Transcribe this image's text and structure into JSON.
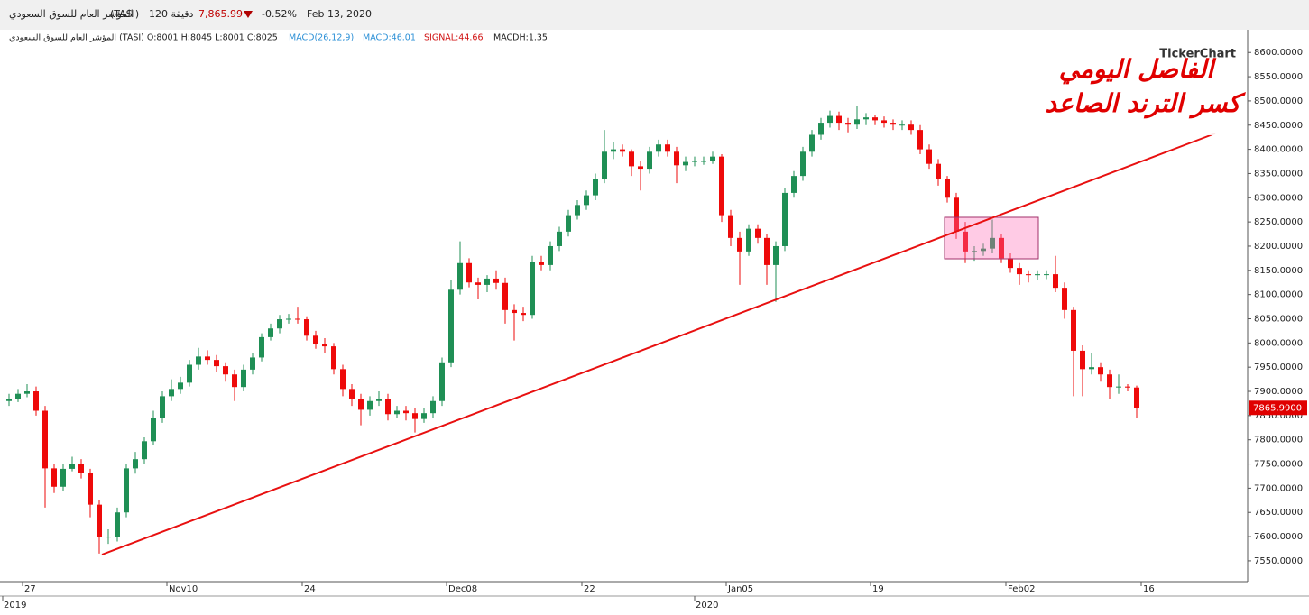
{
  "header": {
    "index_name": "المؤشر العام للسوق السعودي",
    "ticker": "(TASI)",
    "interval": "120 دقيقة",
    "last_price": "7,865.99",
    "change_pct": "-0.52%",
    "date": "Feb 13, 2020"
  },
  "info_line": {
    "ohlc": "المؤشر العام للسوق السعودي (TASI) O:8001 H:8045 L:8001 C:8025",
    "macd_params": "MACD(26,12,9)",
    "macd": "MACD:46.01",
    "signal": "SIGNAL:44.66",
    "macdh": "MACDH:1.35"
  },
  "watermark": "TickerChart",
  "annotations": {
    "line1": "الفاصل اليومي",
    "line2": "كسر الترند الصاعد"
  },
  "chart_data": {
    "type": "candlestick",
    "categories": [
      null,
      "27",
      null,
      null,
      null,
      null,
      null,
      null,
      null,
      null,
      null,
      null,
      null,
      null,
      null,
      null,
      null,
      "Nov10",
      null,
      null,
      null,
      null,
      null,
      null,
      null,
      null,
      null,
      null,
      null,
      null,
      null,
      null,
      "24",
      null,
      null,
      null,
      null,
      null,
      null,
      null,
      null,
      null,
      null,
      null,
      null,
      null,
      null,
      null,
      "Dec08",
      null,
      null,
      null,
      null,
      null,
      null,
      null,
      null,
      null,
      null,
      null,
      null,
      null,
      null,
      "22",
      null,
      null,
      null,
      null,
      null,
      null,
      null,
      null,
      null,
      null,
      null,
      null,
      null,
      null,
      null,
      "Jan05",
      null,
      null,
      null,
      null,
      null,
      null,
      null,
      null,
      null,
      null,
      null,
      null,
      null,
      null,
      null,
      "19",
      null,
      null,
      null,
      null,
      null,
      null,
      null,
      null,
      null,
      null,
      null,
      null,
      null,
      null,
      "Feb02",
      null,
      null,
      null,
      null,
      null,
      null,
      null,
      null,
      null,
      null,
      null,
      null,
      null,
      null,
      "16"
    ],
    "years": [
      "2019",
      null,
      null,
      null,
      null,
      null,
      null,
      null,
      null,
      null,
      null,
      null,
      null,
      null,
      null,
      null,
      null,
      null,
      null,
      null,
      null,
      null,
      null,
      null,
      null,
      null,
      null,
      null,
      null,
      null,
      null,
      null,
      null,
      null,
      null,
      null,
      null,
      null,
      null,
      null,
      null,
      null,
      null,
      null,
      null,
      null,
      null,
      null,
      null,
      null,
      null,
      null,
      null,
      null,
      null,
      null,
      null,
      null,
      null,
      null,
      null,
      null,
      null,
      null,
      null,
      null,
      null,
      null,
      null,
      null,
      null,
      null,
      null,
      null,
      null,
      null,
      "2020",
      null,
      null,
      null,
      null,
      null,
      null,
      null,
      null,
      null,
      null,
      null,
      null,
      null,
      null,
      null,
      null,
      null,
      null,
      null,
      null,
      null,
      null,
      null,
      null,
      null,
      null,
      null,
      null,
      null,
      null,
      null,
      null,
      null,
      null,
      null,
      null,
      null,
      null,
      null,
      null,
      null,
      null,
      null,
      null,
      null,
      null,
      null,
      null,
      null
    ],
    "open": [
      7880,
      7885,
      7895,
      7900,
      7860,
      7741,
      7703,
      7740,
      7750,
      7731,
      7666,
      7600,
      7600,
      7650,
      7741,
      7760,
      7797,
      7845,
      7890,
      7905,
      7918,
      7955,
      7972,
      7965,
      7952,
      7935,
      7909,
      7945,
      7970,
      8012,
      8030,
      8049,
      8050,
      8049,
      8015,
      7998,
      7993,
      7946,
      7905,
      7885,
      7862,
      7880,
      7885,
      7853,
      7860,
      7855,
      7843,
      7855,
      7880,
      7960,
      8110,
      8165,
      8125,
      8120,
      8133,
      8124,
      8068,
      8062,
      8058,
      8168,
      8161,
      8200,
      8230,
      8264,
      8285,
      8305,
      8338,
      8395,
      8400,
      8395,
      8365,
      8360,
      8395,
      8410,
      8395,
      8367,
      8374,
      8376,
      8376,
      8385,
      8264,
      8217,
      8189,
      8236,
      8217,
      8161,
      8200,
      8310,
      8345,
      8395,
      8430,
      8455,
      8469,
      8455,
      8451,
      8462,
      8466,
      8460,
      8455,
      8451,
      8451,
      8440,
      8400,
      8370,
      8338,
      8300,
      8230,
      8189,
      8190,
      8195,
      8217,
      8175,
      8155,
      8142,
      8140,
      8142,
      8142,
      8114,
      8068,
      7984,
      7946,
      7950,
      7935,
      7909,
      7910,
      7908
    ],
    "high": [
      7895,
      7905,
      7915,
      7910,
      7870,
      7750,
      7750,
      7765,
      7760,
      7740,
      7675,
      7615,
      7660,
      7750,
      7775,
      7805,
      7860,
      7900,
      7925,
      7930,
      7965,
      7990,
      7985,
      7975,
      7960,
      7945,
      7955,
      7980,
      8020,
      8040,
      8058,
      8060,
      8075,
      8055,
      8025,
      8010,
      8000,
      7955,
      7915,
      7895,
      7890,
      7900,
      7895,
      7870,
      7870,
      7865,
      7865,
      7890,
      7970,
      8130,
      8210,
      8175,
      8135,
      8140,
      8150,
      8135,
      8080,
      8075,
      8180,
      8180,
      8210,
      8240,
      8275,
      8295,
      8315,
      8350,
      8440,
      8415,
      8410,
      8400,
      8375,
      8405,
      8420,
      8420,
      8405,
      8385,
      8385,
      8385,
      8395,
      8390,
      8275,
      8230,
      8245,
      8245,
      8225,
      8210,
      8320,
      8355,
      8405,
      8440,
      8465,
      8480,
      8478,
      8465,
      8490,
      8475,
      8472,
      8468,
      8462,
      8460,
      8460,
      8450,
      8410,
      8380,
      8345,
      8310,
      8250,
      8200,
      8205,
      8255,
      8225,
      8185,
      8165,
      8150,
      8150,
      8150,
      8180,
      8125,
      8075,
      7995,
      7980,
      7960,
      7945,
      7935,
      7915,
      7912
    ],
    "low": [
      7870,
      7878,
      7888,
      7850,
      7660,
      7690,
      7695,
      7735,
      7720,
      7640,
      7565,
      7585,
      7590,
      7640,
      7730,
      7750,
      7790,
      7835,
      7880,
      7895,
      7910,
      7945,
      7955,
      7940,
      7920,
      7880,
      7900,
      7935,
      7962,
      8005,
      8020,
      8040,
      8040,
      8005,
      7988,
      7980,
      7935,
      7890,
      7870,
      7830,
      7850,
      7870,
      7840,
      7845,
      7840,
      7815,
      7835,
      7845,
      7870,
      7950,
      8100,
      8115,
      8090,
      8105,
      8110,
      8040,
      8005,
      8045,
      8050,
      8150,
      8150,
      8190,
      8220,
      8255,
      8275,
      8295,
      8330,
      8380,
      8385,
      8345,
      8315,
      8350,
      8385,
      8385,
      8330,
      8355,
      8365,
      8368,
      8370,
      8250,
      8200,
      8120,
      8180,
      8205,
      8120,
      8085,
      8190,
      8300,
      8335,
      8385,
      8420,
      8445,
      8440,
      8435,
      8442,
      8450,
      8450,
      8445,
      8440,
      8440,
      8430,
      8390,
      8360,
      8325,
      8290,
      8215,
      8165,
      8170,
      8180,
      8185,
      8165,
      8145,
      8120,
      8125,
      8130,
      8132,
      8105,
      8050,
      7890,
      7890,
      7935,
      7920,
      7885,
      7895,
      7900,
      7845
    ],
    "close": [
      7885,
      7895,
      7900,
      7860,
      7741,
      7703,
      7740,
      7750,
      7731,
      7666,
      7600,
      7600,
      7650,
      7741,
      7760,
      7797,
      7845,
      7890,
      7905,
      7918,
      7955,
      7972,
      7965,
      7952,
      7935,
      7909,
      7945,
      7970,
      8012,
      8030,
      8049,
      8050,
      8049,
      8015,
      7998,
      7993,
      7946,
      7905,
      7885,
      7862,
      7880,
      7885,
      7853,
      7860,
      7855,
      7843,
      7855,
      7880,
      7960,
      8110,
      8165,
      8125,
      8120,
      8133,
      8124,
      8068,
      8062,
      8058,
      8168,
      8161,
      8200,
      8230,
      8264,
      8285,
      8305,
      8338,
      8395,
      8400,
      8395,
      8365,
      8360,
      8395,
      8410,
      8395,
      8367,
      8374,
      8376,
      8376,
      8385,
      8264,
      8217,
      8189,
      8236,
      8217,
      8161,
      8200,
      8310,
      8345,
      8395,
      8430,
      8455,
      8469,
      8455,
      8451,
      8462,
      8466,
      8460,
      8455,
      8451,
      8451,
      8440,
      8400,
      8370,
      8338,
      8300,
      8230,
      8189,
      8190,
      8195,
      8217,
      8175,
      8155,
      8142,
      8140,
      8142,
      8142,
      8114,
      8068,
      7984,
      7946,
      7950,
      7935,
      7909,
      7910,
      7908,
      7866
    ],
    "up_color": "#1f8f55",
    "down_color": "#ee0a0a",
    "ylim": [
      7507,
      8647
    ],
    "yticks": [
      {
        "value": 7550,
        "label": "7550.0000"
      },
      {
        "value": 7600,
        "label": "7600.0000"
      },
      {
        "value": 7650,
        "label": "7650.0000"
      },
      {
        "value": 7700,
        "label": "7700.0000"
      },
      {
        "value": 7750,
        "label": "7750.0000"
      },
      {
        "value": 7800,
        "label": "7800.0000"
      },
      {
        "value": 7850,
        "label": "7850.0000"
      },
      {
        "value": 7900,
        "label": "7900.0000"
      },
      {
        "value": 7950,
        "label": "7950.0000"
      },
      {
        "value": 8000,
        "label": "8000.0000"
      },
      {
        "value": 8050,
        "label": "8050.0000"
      },
      {
        "value": 8100,
        "label": "8100.0000"
      },
      {
        "value": 8150,
        "label": "8150.0000"
      },
      {
        "value": 8200,
        "label": "8200.0000"
      },
      {
        "value": 8250,
        "label": "8250.0000"
      },
      {
        "value": 8300,
        "label": "8300.0000"
      },
      {
        "value": 8350,
        "label": "8350.0000"
      },
      {
        "value": 8400,
        "label": "8400.0000"
      },
      {
        "value": 8450,
        "label": "8450.0000"
      },
      {
        "value": 8500,
        "label": "8500.0000"
      },
      {
        "value": 8550,
        "label": "8550.0000"
      },
      {
        "value": 8600,
        "label": "8600.0000"
      }
    ],
    "last_price": {
      "value": 7865.99,
      "label": "7865.9900"
    }
  }
}
